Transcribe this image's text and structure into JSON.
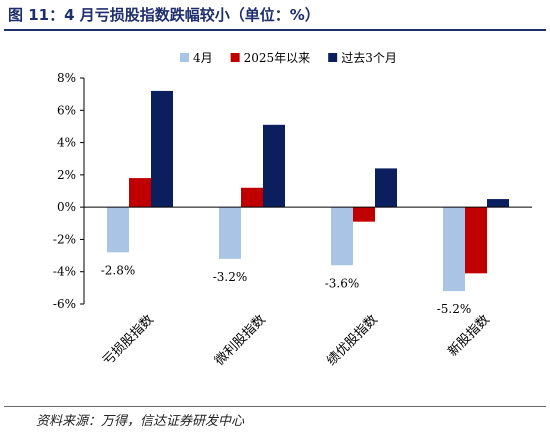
{
  "header": {
    "title": "图 11：4 月亏损股指数跌幅较小（单位：%）"
  },
  "footer": {
    "source": "资料来源：万得，信达证券研发中心"
  },
  "chart_data": {
    "type": "bar",
    "categories": [
      "亏损股指数",
      "微利股指数",
      "绩优股指数",
      "新股指数"
    ],
    "series": [
      {
        "name": "4月",
        "values": [
          -2.8,
          -3.2,
          -3.6,
          -5.2
        ],
        "color": "#a9c4e4"
      },
      {
        "name": "2025年以来",
        "values": [
          1.8,
          1.2,
          -0.9,
          -4.1
        ],
        "color": "#c00000"
      },
      {
        "name": "过去3个月",
        "values": [
          7.2,
          5.1,
          2.4,
          0.5
        ],
        "color": "#0b1f5e"
      }
    ],
    "data_labels": [
      "-2.8%",
      "-3.2%",
      "-3.6%",
      "-5.2%"
    ],
    "yticks": [
      "8%",
      "6%",
      "4%",
      "2%",
      "0%",
      "-2%",
      "-4%",
      "-6%"
    ],
    "ylim": [
      -6,
      8
    ],
    "legend_position": "top",
    "grid": false
  }
}
